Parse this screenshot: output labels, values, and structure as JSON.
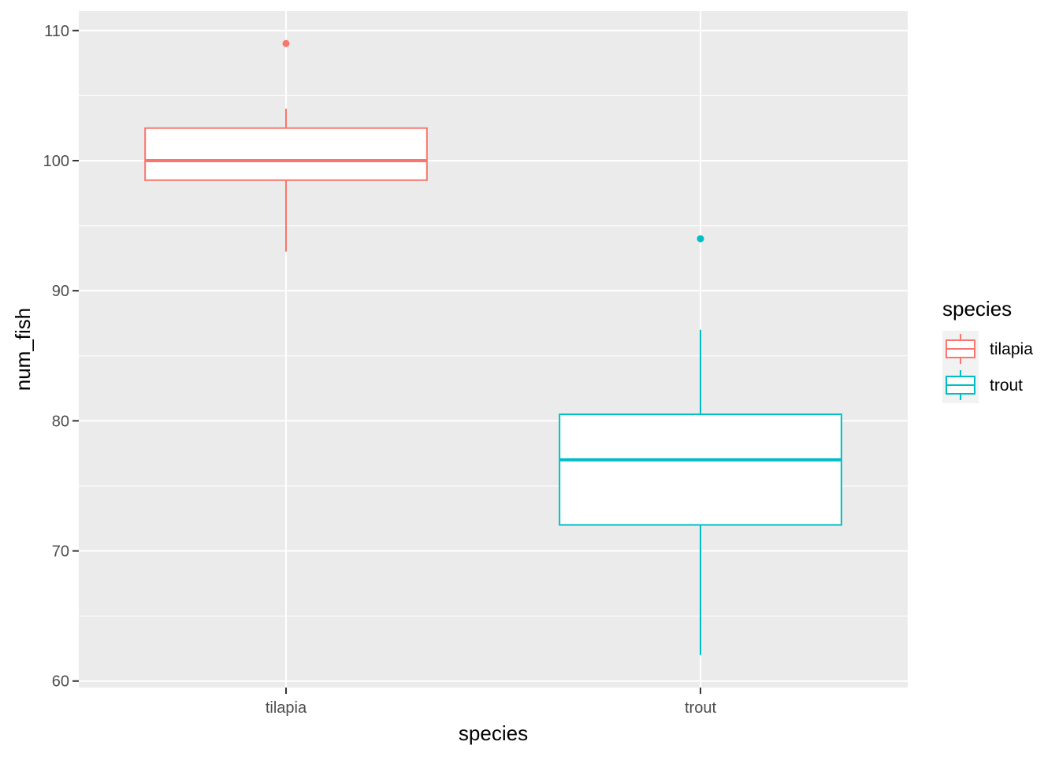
{
  "colors": {
    "panel_background": "#ebebeb",
    "grid_line": "#ffffff",
    "axis_text": "#4d4d4d",
    "title_text": "#000000",
    "box_fill": "#ffffff"
  },
  "chart_data": {
    "type": "boxplot",
    "title": "",
    "xlabel": "species",
    "ylabel": "num_fish",
    "ylim": [
      59.5,
      111.5
    ],
    "y_ticks": [
      60,
      70,
      80,
      90,
      100,
      110
    ],
    "y_minor_ticks": [
      65,
      75,
      85,
      95,
      105
    ],
    "grid": true,
    "categories": [
      "tilapia",
      "trout"
    ],
    "series": [
      {
        "name": "tilapia",
        "color": "#f8766d",
        "whisker_low": 93,
        "q1": 98.5,
        "median": 100,
        "q3": 102.5,
        "whisker_high": 104,
        "outliers": [
          109
        ]
      },
      {
        "name": "trout",
        "color": "#00bfc4",
        "whisker_low": 62,
        "q1": 72,
        "median": 77,
        "q3": 80.5,
        "whisker_high": 87,
        "outliers": [
          94
        ]
      }
    ],
    "legend": {
      "title": "species",
      "position": "right",
      "items": [
        "tilapia",
        "trout"
      ]
    }
  }
}
